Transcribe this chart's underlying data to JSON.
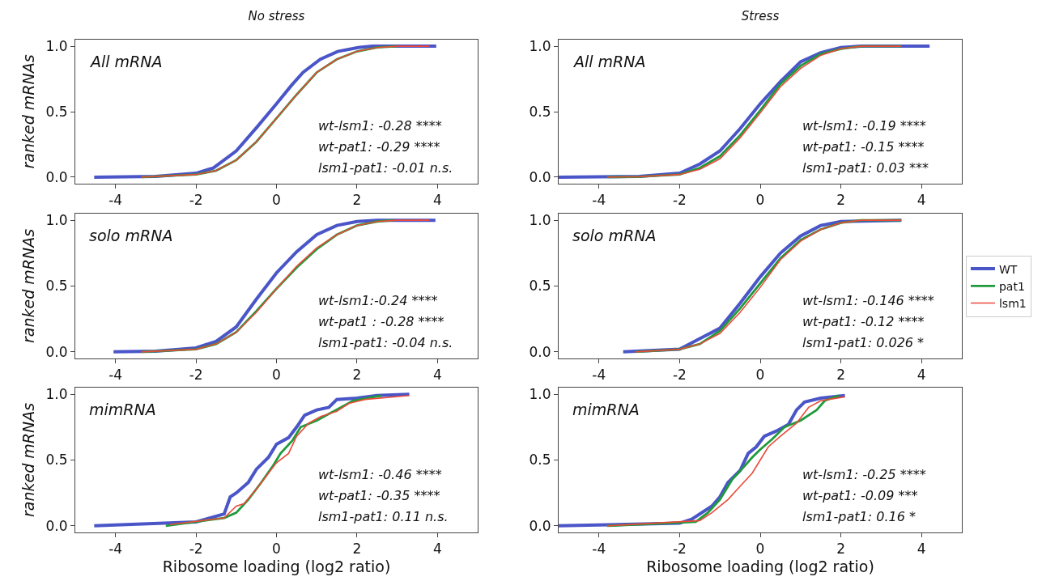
{
  "chart_data": [
    {
      "type": "line",
      "title": "No stress",
      "ylabel": "ranked mRNAs",
      "annotations": [
        "All mRNA",
        "wt-lsm1: -0.28 ****",
        "wt-pat1: -0.29 ****",
        "lsm1-pat1: -0.01 n.s."
      ],
      "xlim": [
        -5,
        5
      ],
      "ylim": [
        -0.05,
        1.05
      ],
      "xticks": [
        -4,
        -2,
        0,
        2,
        4
      ],
      "yticks": [
        {
          "value": 0,
          "label": "0.0"
        },
        {
          "value": 0.5,
          "label": "0.5"
        },
        {
          "value": 1,
          "label": "1.0"
        }
      ],
      "series": [
        {
          "color": "#4a55c8",
          "x": [
            -4.53,
            -3,
            -2,
            -1.57,
            -1,
            -0.49,
            0,
            0.37,
            0.66,
            1.09,
            1.52,
            2.03,
            2.39,
            3.97
          ],
          "values": [
            0,
            0.005,
            0.03,
            0.07,
            0.2,
            0.38,
            0.56,
            0.7,
            0.8,
            0.9,
            0.96,
            0.99,
            1,
            1
          ]
        },
        {
          "color": "#1f9a3c",
          "x": [
            -3.36,
            -2,
            -1.5,
            -1,
            -0.5,
            0,
            0.5,
            1,
            1.5,
            2,
            2.5,
            3
          ],
          "values": [
            0,
            0.02,
            0.05,
            0.13,
            0.27,
            0.45,
            0.63,
            0.8,
            0.9,
            0.96,
            0.99,
            1
          ]
        },
        {
          "color": "#ea4a3a",
          "x": [
            -3.36,
            -2,
            -1.5,
            -1,
            -0.5,
            0,
            0.5,
            1,
            1.5,
            2,
            2.5,
            3,
            3.8
          ],
          "values": [
            0,
            0.02,
            0.05,
            0.13,
            0.27,
            0.45,
            0.63,
            0.8,
            0.9,
            0.96,
            0.99,
            1,
            1
          ]
        }
      ]
    },
    {
      "type": "line",
      "title": "Stress",
      "annotations": [
        "All mRNA",
        "wt-lsm1: -0.19 ****",
        "wt-pat1: -0.15 ****",
        "lsm1-pat1: 0.03 ***"
      ],
      "xlim": [
        -5,
        5
      ],
      "ylim": [
        -0.05,
        1.05
      ],
      "xticks": [
        -4,
        -2,
        0,
        2,
        4
      ],
      "yticks": [
        {
          "value": 0,
          "label": "0.0"
        },
        {
          "value": 0.5,
          "label": "0.5"
        },
        {
          "value": 1,
          "label": "1.0"
        }
      ],
      "series": [
        {
          "color": "#4a55c8",
          "x": [
            -5,
            -3,
            -2,
            -1.5,
            -1,
            -0.5,
            0,
            0.5,
            1,
            1.5,
            2,
            2.5,
            4.2
          ],
          "values": [
            0,
            0.005,
            0.03,
            0.1,
            0.2,
            0.37,
            0.56,
            0.73,
            0.88,
            0.95,
            0.99,
            1,
            1
          ]
        },
        {
          "color": "#1f9a3c",
          "x": [
            -3.8,
            -3,
            -2,
            -1.5,
            -1,
            -0.5,
            0,
            0.5,
            1,
            1.5,
            2,
            2.5,
            3.5
          ],
          "values": [
            0,
            0.003,
            0.02,
            0.07,
            0.16,
            0.32,
            0.51,
            0.71,
            0.85,
            0.94,
            0.98,
            1,
            1
          ]
        },
        {
          "color": "#ea4a3a",
          "x": [
            -3.8,
            -3,
            -2,
            -1.5,
            -1,
            -0.5,
            0,
            0.5,
            1,
            1.5,
            2,
            2.5,
            3.5
          ],
          "values": [
            0,
            0.003,
            0.02,
            0.06,
            0.14,
            0.3,
            0.49,
            0.69,
            0.83,
            0.93,
            0.98,
            1,
            1
          ]
        }
      ]
    },
    {
      "type": "line",
      "ylabel": "ranked mRNAs",
      "annotations": [
        "solo mRNA",
        "wt-lsm1:-0.24 ****",
        "wt-pat1 : -0.28 ****",
        "lsm1-pat1: -0.04 n.s."
      ],
      "xlim": [
        -5,
        5
      ],
      "ylim": [
        -0.05,
        1.05
      ],
      "xticks": [
        -4,
        -2,
        0,
        2,
        4
      ],
      "yticks": [
        {
          "value": 0,
          "label": "0.0"
        },
        {
          "value": 0.5,
          "label": "0.5"
        },
        {
          "value": 1,
          "label": "1.0"
        }
      ],
      "series": [
        {
          "color": "#4a55c8",
          "x": [
            -4.05,
            -3,
            -2,
            -1.5,
            -1,
            -0.5,
            0,
            0.5,
            1,
            1.5,
            2,
            2.5,
            3.95
          ],
          "values": [
            0,
            0.005,
            0.03,
            0.08,
            0.19,
            0.4,
            0.6,
            0.76,
            0.89,
            0.96,
            0.99,
            1,
            1
          ]
        },
        {
          "color": "#1f9a3c",
          "x": [
            -3.35,
            -2,
            -1.5,
            -1,
            -0.5,
            0,
            0.5,
            1,
            1.5,
            2,
            2.5,
            2.9
          ],
          "values": [
            0,
            0.02,
            0.06,
            0.15,
            0.31,
            0.48,
            0.64,
            0.78,
            0.89,
            0.96,
            0.99,
            1
          ]
        },
        {
          "color": "#ea4a3a",
          "x": [
            -3.35,
            -2,
            -1.5,
            -1,
            -0.5,
            0,
            0.5,
            1,
            1.5,
            2,
            2.5,
            3,
            3.8
          ],
          "values": [
            0,
            0.02,
            0.06,
            0.15,
            0.3,
            0.48,
            0.65,
            0.79,
            0.89,
            0.96,
            0.99,
            1,
            1
          ]
        }
      ]
    },
    {
      "type": "line",
      "legend": "right",
      "annotations": [
        "solo mRNA",
        "wt-lsm1: -0.146 ****",
        "wt-pat1: -0.12 ****",
        "lsm1-pat1: 0.026 *"
      ],
      "xlim": [
        -5,
        5
      ],
      "ylim": [
        -0.05,
        1.05
      ],
      "xticks": [
        -4,
        -2,
        0,
        2,
        4
      ],
      "yticks": [
        {
          "value": 0,
          "label": "0.0"
        },
        {
          "value": 0.5,
          "label": "0.5"
        },
        {
          "value": 1,
          "label": "1.0"
        }
      ],
      "series": [
        {
          "name": "WT",
          "color": "#4a55c8",
          "x": [
            -3.4,
            -2,
            -1.5,
            -1,
            -0.5,
            0,
            0.5,
            1,
            1.5,
            2,
            3.5
          ],
          "values": [
            0,
            0.02,
            0.1,
            0.18,
            0.37,
            0.57,
            0.75,
            0.88,
            0.96,
            0.99,
            1
          ]
        },
        {
          "name": "pat1",
          "color": "#1f9a3c",
          "x": [
            -3.1,
            -2,
            -1.5,
            -1,
            -0.5,
            0,
            0.5,
            1,
            1.5,
            2,
            2.5,
            3.5
          ],
          "values": [
            0,
            0.02,
            0.06,
            0.16,
            0.33,
            0.52,
            0.71,
            0.85,
            0.93,
            0.98,
            1,
            1
          ]
        },
        {
          "name": "lsm1",
          "color": "#ea4a3a",
          "x": [
            -3.1,
            -2,
            -1.5,
            -1,
            -0.5,
            0,
            0.5,
            1,
            1.5,
            2,
            2.5,
            3.5
          ],
          "values": [
            0,
            0.02,
            0.06,
            0.14,
            0.3,
            0.49,
            0.7,
            0.84,
            0.93,
            0.98,
            1,
            1
          ]
        }
      ]
    },
    {
      "type": "line",
      "xlabel": "Ribosome loading (log2 ratio)",
      "ylabel": "ranked mRNAs",
      "annotations": [
        "mimRNA",
        "wt-lsm1: -0.46 ****",
        "wt-pat1: -0.35 ****",
        "lsm1-pat1: 0.11 n.s."
      ],
      "xlim": [
        -5,
        5
      ],
      "ylim": [
        -0.05,
        1.05
      ],
      "xticks": [
        -4,
        -2,
        0,
        2,
        4
      ],
      "yticks": [
        {
          "value": 0,
          "label": "0.0"
        },
        {
          "value": 0.5,
          "label": "0.5"
        },
        {
          "value": 1,
          "label": "1.0"
        }
      ],
      "series": [
        {
          "color": "#4a55c8",
          "x": [
            -4.53,
            -2,
            -1.3,
            -1.15,
            -1,
            -0.7,
            -0.5,
            -0.2,
            0,
            0.3,
            0.5,
            0.7,
            1,
            1.3,
            1.5,
            2,
            2.5,
            3.3
          ],
          "values": [
            0,
            0.03,
            0.09,
            0.22,
            0.25,
            0.33,
            0.43,
            0.52,
            0.62,
            0.67,
            0.75,
            0.84,
            0.88,
            0.9,
            0.96,
            0.97,
            0.99,
            1
          ]
        },
        {
          "color": "#1f9a3c",
          "x": [
            -2.75,
            -1.3,
            -1,
            -0.7,
            -0.4,
            -0.1,
            0.1,
            0.4,
            0.6,
            1,
            1.3,
            1.6,
            1.9,
            2.6
          ],
          "values": [
            0,
            0.06,
            0.1,
            0.2,
            0.32,
            0.45,
            0.55,
            0.65,
            0.75,
            0.8,
            0.85,
            0.9,
            0.95,
            0.99
          ]
        },
        {
          "color": "#ea4a3a",
          "x": [
            -2.65,
            -1.3,
            -1,
            -0.8,
            -0.5,
            -0.2,
            0,
            0.3,
            0.5,
            0.8,
            1.1,
            1.5,
            1.8,
            2.2,
            3.3
          ],
          "values": [
            0.01,
            0.06,
            0.15,
            0.17,
            0.28,
            0.4,
            0.48,
            0.55,
            0.68,
            0.78,
            0.83,
            0.87,
            0.93,
            0.96,
            0.99
          ]
        }
      ]
    },
    {
      "type": "line",
      "xlabel": "Ribosome loading (log2 ratio)",
      "annotations": [
        "mimRNA",
        "wt-lsm1: -0.25 ****",
        "wt-pat1: -0.09 ***",
        "lsm1-pat1: 0.16 *"
      ],
      "xlim": [
        -5,
        5
      ],
      "ylim": [
        -0.05,
        1.05
      ],
      "xticks": [
        -4,
        -2,
        0,
        2,
        4
      ],
      "yticks": [
        {
          "value": 0,
          "label": "0.0"
        },
        {
          "value": 0.5,
          "label": "0.5"
        },
        {
          "value": 1,
          "label": "1.0"
        }
      ],
      "series": [
        {
          "color": "#4a55c8",
          "x": [
            -5,
            -2,
            -1.7,
            -1.2,
            -1,
            -0.8,
            -0.5,
            -0.3,
            -0.1,
            0.1,
            0.4,
            0.7,
            0.9,
            1.1,
            1.5,
            2.1
          ],
          "values": [
            0,
            0.02,
            0.05,
            0.15,
            0.22,
            0.33,
            0.42,
            0.55,
            0.6,
            0.68,
            0.72,
            0.77,
            0.88,
            0.94,
            0.97,
            0.99
          ]
        },
        {
          "color": "#1f9a3c",
          "x": [
            -3.8,
            -1.6,
            -1.3,
            -1,
            -0.7,
            -0.4,
            -0.2,
            0,
            0.3,
            0.6,
            1,
            1.4,
            1.6,
            1.95
          ],
          "values": [
            0,
            0.03,
            0.1,
            0.2,
            0.35,
            0.45,
            0.52,
            0.58,
            0.66,
            0.75,
            0.8,
            0.88,
            0.95,
            0.99
          ]
        },
        {
          "color": "#ea4a3a",
          "x": [
            -3.8,
            -1.5,
            -1.2,
            -0.8,
            -0.5,
            -0.2,
            0,
            0.2,
            0.5,
            0.9,
            1.2,
            1.5,
            2.1
          ],
          "values": [
            0,
            0.04,
            0.1,
            0.2,
            0.3,
            0.4,
            0.5,
            0.6,
            0.68,
            0.78,
            0.9,
            0.95,
            0.98
          ]
        }
      ]
    }
  ]
}
